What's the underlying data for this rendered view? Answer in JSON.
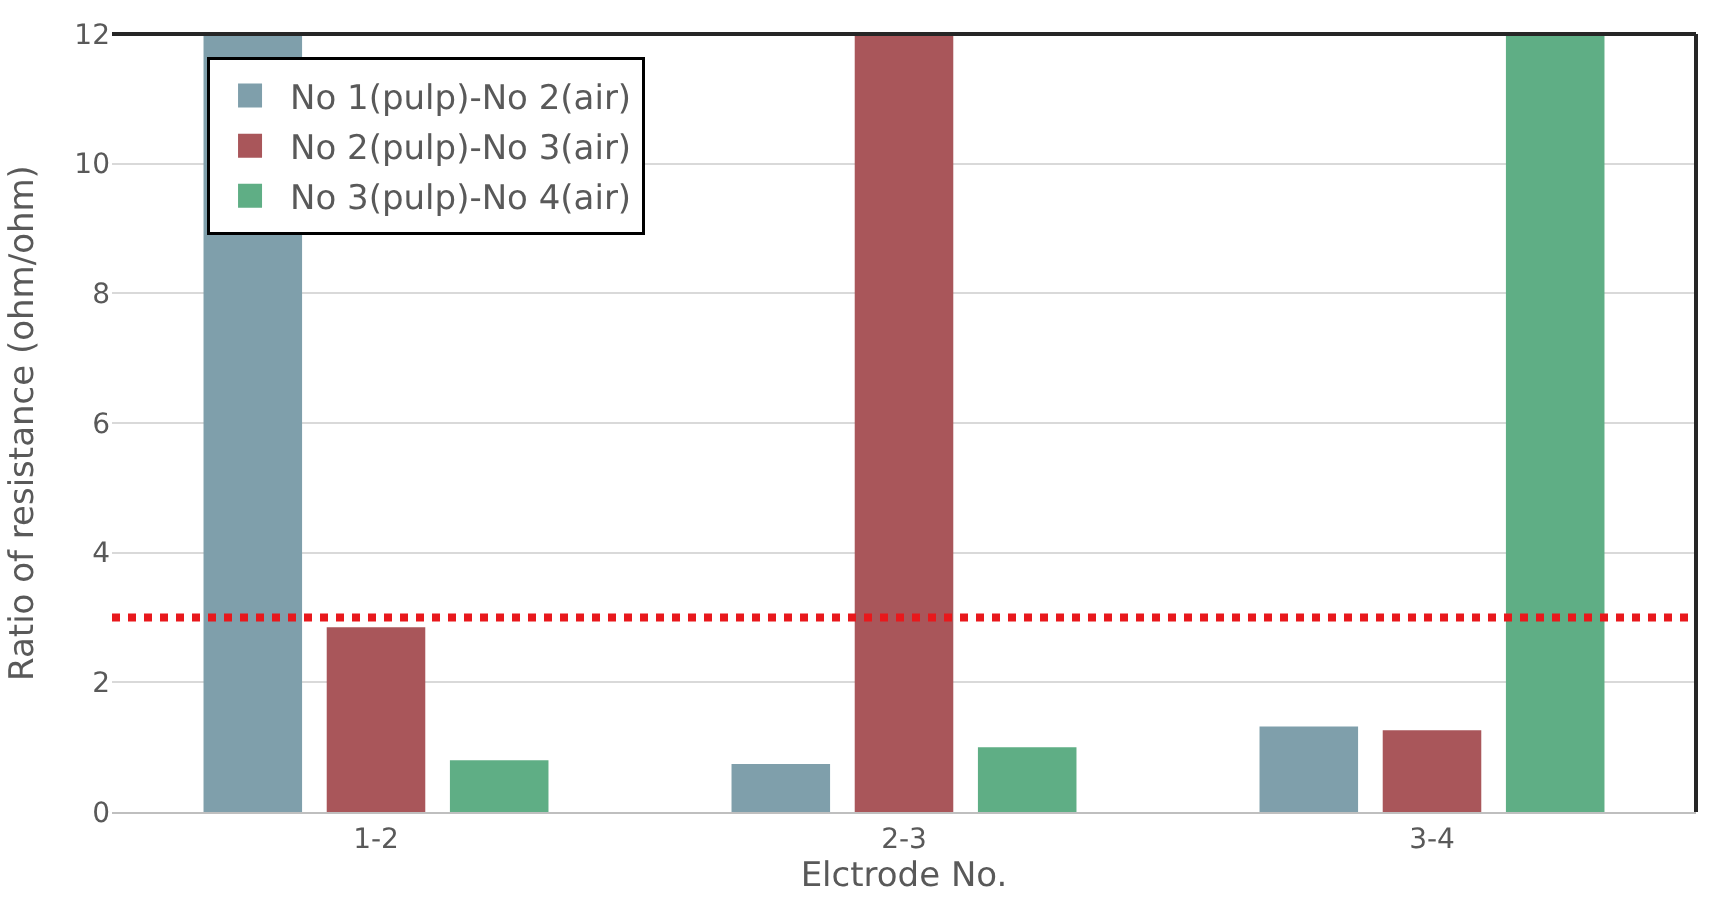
{
  "chart_data": {
    "type": "bar",
    "xlabel": "Elctrode No.",
    "ylabel": "Ratio of resistance (ohm/ohm)",
    "categories": [
      "1-2",
      "2-3",
      "3-4"
    ],
    "series": [
      {
        "name": "No 1(pulp)-No 2(air)",
        "color": "#7f9fab",
        "values": [
          12,
          0.74,
          1.32
        ]
      },
      {
        "name": "No 2(pulp)-No 3(air)",
        "color": "#a9565a",
        "values": [
          2.85,
          12,
          1.26
        ]
      },
      {
        "name": "No 3(pulp)-No 4(air)",
        "color": "#5fae85",
        "values": [
          0.8,
          1.0,
          12
        ]
      }
    ],
    "ylim": [
      0,
      12
    ],
    "yticks": [
      0,
      2,
      4,
      6,
      8,
      10,
      12
    ],
    "grid": "y",
    "legend": "top left",
    "ref_lines": [
      {
        "axis": "y",
        "value": 3,
        "color": "#e8181c",
        "line_style": "dotted"
      }
    ]
  }
}
